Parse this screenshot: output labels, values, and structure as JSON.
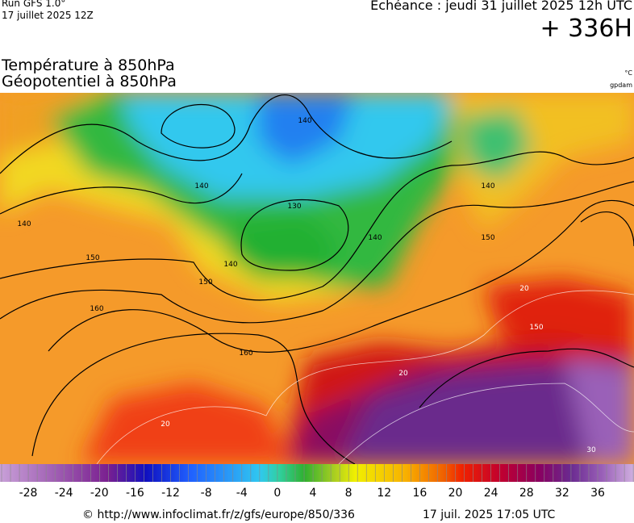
{
  "header": {
    "run": "Run GFS 1.0°",
    "run_date": "17 juillet 2025 12Z",
    "valid": "Echéance : jeudi 31 juillet 2025 12h UTC",
    "lead": "+ 336H"
  },
  "titles": [
    "Température à 850hPa",
    "Géopotentiel à 850hPa"
  ],
  "units": [
    "°C",
    "gpdam"
  ],
  "contour_labels": [
    "140",
    "140",
    "130",
    "140",
    "150",
    "140",
    "150",
    "140",
    "150",
    "140",
    "160",
    "160",
    "150",
    "20",
    "20",
    "20",
    "30"
  ],
  "colorbar": {
    "ticks": [
      -28,
      -24,
      -20,
      -16,
      -12,
      -8,
      -4,
      0,
      4,
      8,
      12,
      16,
      20,
      24,
      28,
      32,
      36
    ]
  },
  "footer": {
    "url": "© http://www.infoclimat.fr/z/gfs/europe/850/336",
    "generated": "17 juil. 2025 17:05 UTC"
  }
}
